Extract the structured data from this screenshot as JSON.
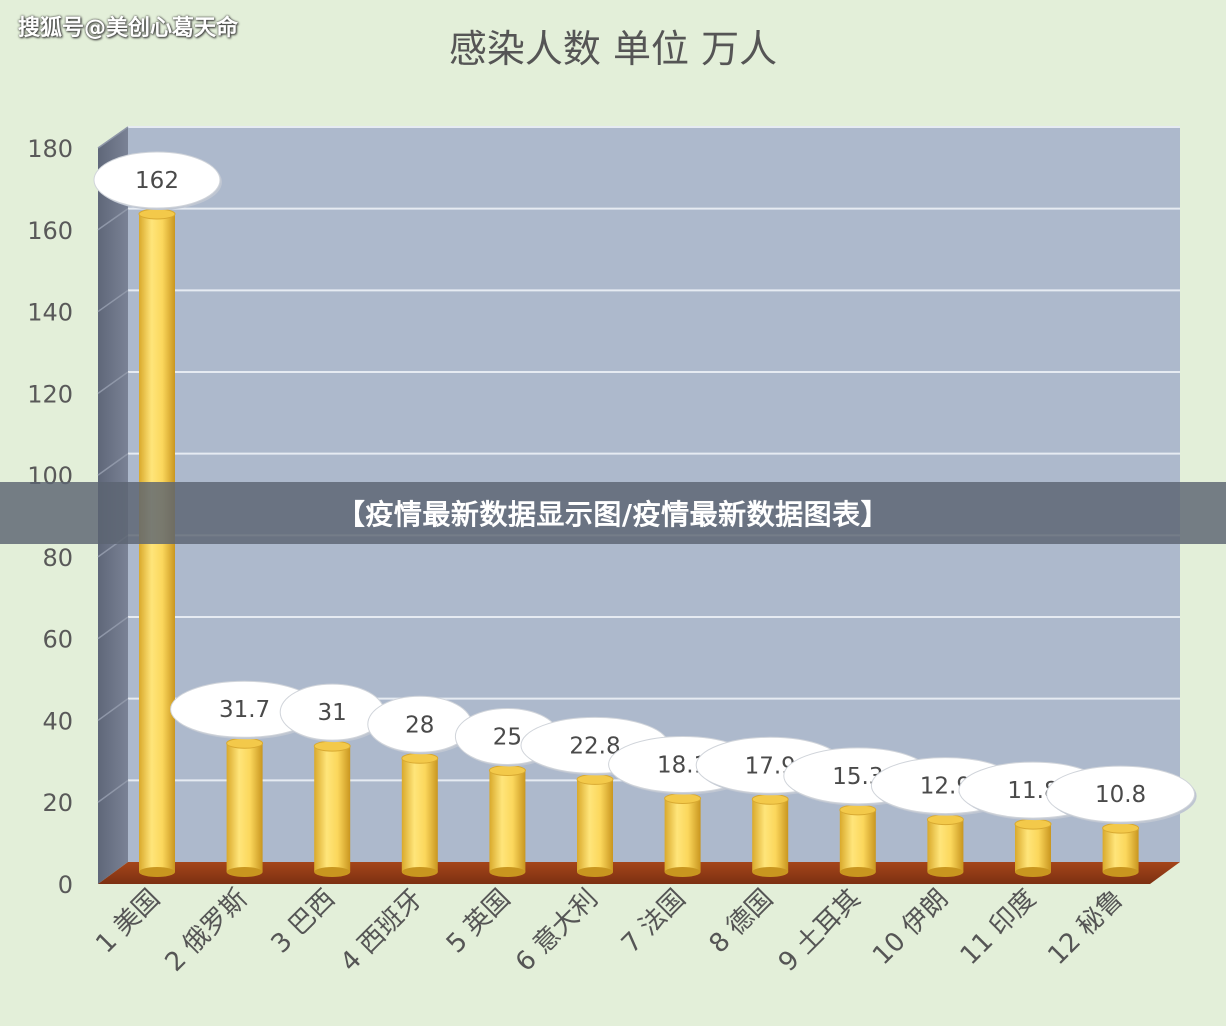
{
  "watermark": "搜狐号@美创心葛天命",
  "overlay_caption": "【疫情最新数据显示图/疫情最新数据图表】",
  "colors": {
    "background": "#e3efd9",
    "plot_back": "#adb9cc",
    "plot_side": "#6c7486",
    "floor": "#8b3a14",
    "bar": "#f7d55a",
    "bar_dark": "#d1a22a",
    "gridline": "#e6ebf2",
    "label_bubble": "#ffffff"
  },
  "chart_data": {
    "type": "bar",
    "title": "感染人数 单位 万人",
    "categories": [
      "1 美国",
      "2 俄罗斯",
      "3 巴西",
      "4 西班牙",
      "5 英国",
      "6 意大利",
      "7 法国",
      "8 德国",
      "9 土耳其",
      "10 伊朗",
      "11 印度",
      "12 秘鲁"
    ],
    "values": [
      162,
      31.7,
      31,
      28,
      25,
      22.8,
      18.1,
      17.9,
      15.3,
      12.9,
      11.8,
      10.8
    ],
    "value_labels": [
      "162",
      "31.7",
      "31",
      "28",
      "25",
      "22.8",
      "18.1",
      "17.9",
      "15.3",
      "12.9",
      "11.8",
      "10.8"
    ],
    "y_ticks": [
      "0",
      "20",
      "40",
      "60",
      "80",
      "100",
      "120",
      "140",
      "160",
      "180"
    ],
    "ylim": [
      0,
      180
    ],
    "grid": true,
    "style": "3d-cylinder"
  }
}
